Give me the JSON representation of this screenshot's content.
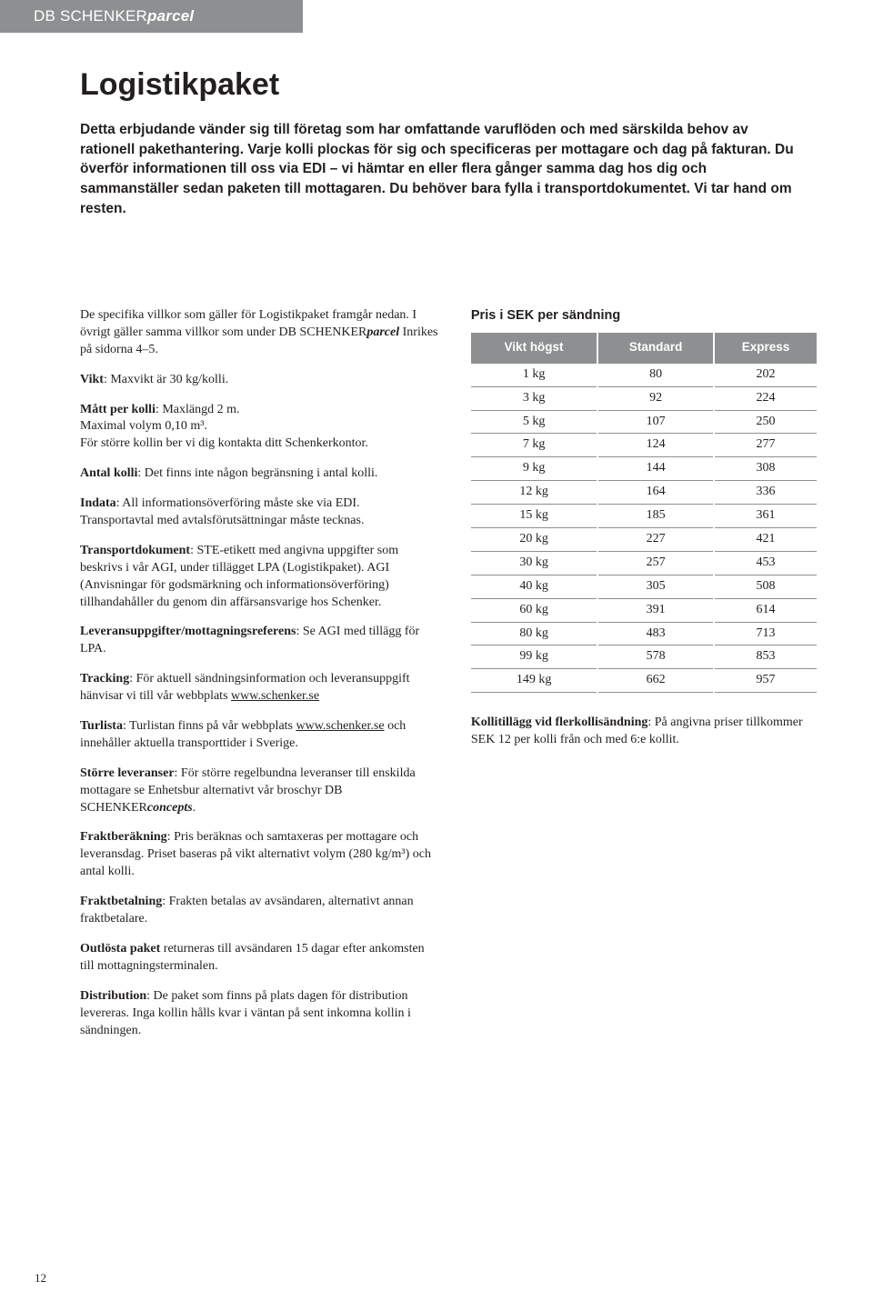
{
  "header": {
    "brand_prefix": "DB SCHENKER",
    "brand_suffix": "parcel"
  },
  "title": "Logistikpaket",
  "lead": "Detta erbjudande vänder sig till företag som har omfattande varuflöden och med särskilda behov av rationell pakethantering. Varje kolli plockas för sig och specificeras per mottagare och dag på fakturan. Du överför informationen till oss via EDI – vi hämtar en eller flera gånger samma dag hos dig och sammanställer sedan paketen till mottagaren. Du behöver bara fylla i transportdokumentet. Vi tar hand om resten.",
  "left": {
    "intro_part1": "De specifika villkor som gäller för Logistikpaket framgår nedan. I övrigt gäller samma villkor som under DB SCHEN­KER",
    "intro_brand": "parcel",
    "intro_part2": " Inrikes på sidorna 4–5.",
    "vikt_label": "Vikt",
    "vikt_text": ": Maxvikt är 30 kg/kolli.",
    "matt_label": "Mått per kolli",
    "matt_text": ": Maxlängd 2 m.",
    "matt_line2": "Maximal volym 0,10 m³.",
    "matt_line3": "För större kollin ber vi dig kontakta ditt Schenkerkontor.",
    "antal_label": "Antal kolli",
    "antal_text": ": Det finns inte någon begränsning i antal kolli.",
    "indata_label": "Indata",
    "indata_line1": ": All informationsöverföring måste ske via EDI.",
    "indata_line2": "Transportavtal med avtalsförutsättningar måste tecknas.",
    "transport_label": "Transportdokument",
    "transport_text": ": STE-etikett med angivna uppgifter som beskrivs i vår AGI, under tillägget LPA (Logistikpaket). AGI (Anvisningar för godsmärkning och informations­överföring) tillhandahåller du genom din affärsansvarige hos Schenker.",
    "leverans_label": "Leveransuppgifter/mottagningsreferens",
    "leverans_text": ": Se AGI med tillägg för LPA.",
    "tracking_label": "Tracking",
    "tracking_text": ": För aktuell sändningsinformation och leverans­uppgift hänvisar vi till vår webbplats ",
    "tracking_link": "www.schenker.se",
    "turlista_label": "Turlista",
    "turlista_text1": ": Turlistan finns på vår webbplats ",
    "turlista_link": "www.schenker.se",
    "turlista_text2": " och innehåller aktuella transporttider i Sverige.",
    "storre_label": "Större leveranser",
    "storre_text1": ": För större regelbundna leveranser till enskilda mottagare se Enhetsbur alternativt vår broschyr DB SCHENKER",
    "storre_brand": "concepts",
    "storre_text2": ".",
    "frakt_label": "Fraktberäkning",
    "frakt_text": ": Pris beräknas och samtaxeras per mot­tagare och leveransdag. Priset baseras på vikt alternativt volym (280 kg/m³) och antal kolli.",
    "fraktbet_label": "Fraktbetalning",
    "fraktbet_text": ": Frakten betalas av avsändaren, alternativt annan fraktbetalare.",
    "outlosta_label": "Outlösta paket",
    "outlosta_text": " returneras till avsändaren 15 dagar efter ankomsten till mottagningsterminalen.",
    "dist_label": "Distribution",
    "dist_text": ": De paket som finns på plats dagen för distribution levereras. Inga kollin hålls kvar i väntan på sent inkomna kollin i sändningen."
  },
  "right": {
    "price_title": "Pris i SEK per sändning",
    "headers": [
      "Vikt högst",
      "Standard",
      "Express"
    ],
    "rows": [
      [
        "1 kg",
        "80",
        "202"
      ],
      [
        "3 kg",
        "92",
        "224"
      ],
      [
        "5 kg",
        "107",
        "250"
      ],
      [
        "7 kg",
        "124",
        "277"
      ],
      [
        "9 kg",
        "144",
        "308"
      ],
      [
        "12 kg",
        "164",
        "336"
      ],
      [
        "15 kg",
        "185",
        "361"
      ],
      [
        "20 kg",
        "227",
        "421"
      ],
      [
        "30 kg",
        "257",
        "453"
      ],
      [
        "40 kg",
        "305",
        "508"
      ],
      [
        "60 kg",
        "391",
        "614"
      ],
      [
        "80 kg",
        "483",
        "713"
      ],
      [
        "99 kg",
        "578",
        "853"
      ],
      [
        "149 kg",
        "662",
        "957"
      ]
    ],
    "kolli_label": "Kollitillägg vid flerkollisändning",
    "kolli_text": ": På angivna priser tillkommer SEK 12 per kolli från och med 6:e kollit."
  },
  "page_number": "12"
}
